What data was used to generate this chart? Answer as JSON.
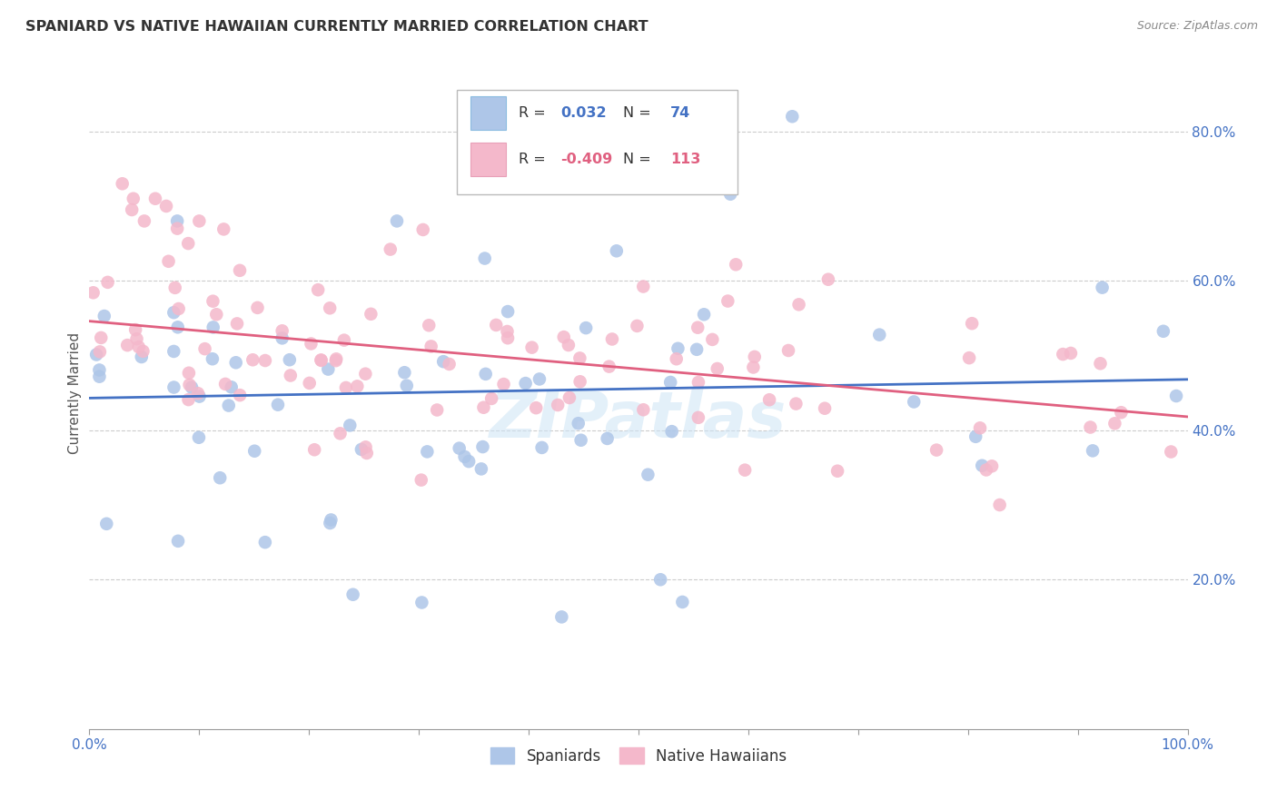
{
  "title": "SPANIARD VS NATIVE HAWAIIAN CURRENTLY MARRIED CORRELATION CHART",
  "source": "Source: ZipAtlas.com",
  "ylabel": "Currently Married",
  "spaniards_color": "#aec6e8",
  "native_hawaiians_color": "#f4b8cb",
  "trendline_spaniards_color": "#4472c4",
  "trendline_native_hawaiians_color": "#e06080",
  "watermark": "ZIPatlas",
  "legend_blue_patch": "#aec6e8",
  "legend_pink_patch": "#f4b8cb",
  "legend_R1": "0.032",
  "legend_N1": "74",
  "legend_R2": "-0.409",
  "legend_N2": "113",
  "R_color_blue": "#4472c4",
  "R_color_pink": "#e06080",
  "text_dark": "#404040",
  "tick_color": "#4472c4",
  "grid_color": "#cccccc",
  "ylim": [
    0.0,
    0.9
  ],
  "xlim": [
    0.0,
    1.0
  ],
  "yticks": [
    0.2,
    0.4,
    0.6,
    0.8
  ],
  "ytick_labels": [
    "20.0%",
    "40.0%",
    "60.0%",
    "80.0%"
  ],
  "xtick_labels_show": [
    "0.0%",
    "100.0%"
  ],
  "sp_trendline_start_y": 0.443,
  "sp_trendline_end_y": 0.468,
  "nh_trendline_start_y": 0.546,
  "nh_trendline_end_y": 0.418
}
